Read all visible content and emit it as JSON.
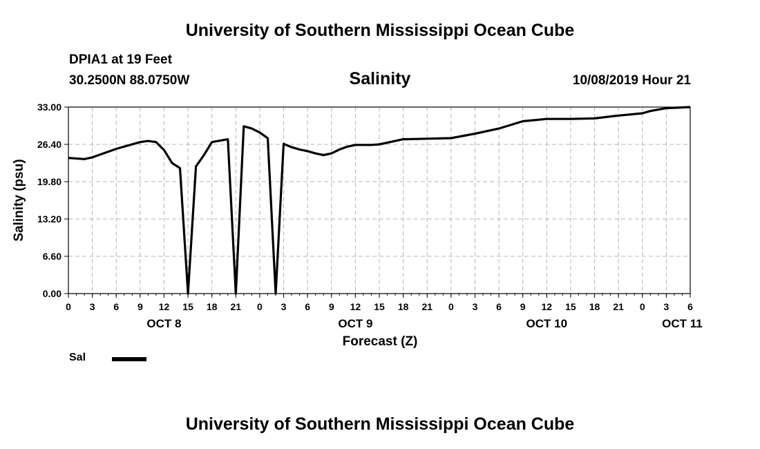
{
  "header": {
    "title_top": "University of Southern Mississippi Ocean Cube",
    "title_bottom": "University of Southern Mississippi Ocean Cube",
    "station": "DPIA1 at 19 Feet",
    "coords": "30.2500N 88.0750W",
    "datetime": "10/08/2019 Hour 21"
  },
  "chart_data": {
    "type": "line",
    "title": "Salinity",
    "xlabel": "Forecast (Z)",
    "ylabel": "Salinity (psu)",
    "ylim": [
      0,
      33
    ],
    "y_ticks": [
      "0.00",
      "6.60",
      "13.20",
      "19.80",
      "26.40",
      "33.00"
    ],
    "x_range_hours": [
      0,
      78
    ],
    "x_tick_labels": [
      "0",
      "3",
      "6",
      "9",
      "12",
      "15",
      "18",
      "21",
      "0",
      "3",
      "6",
      "9",
      "12",
      "15",
      "18",
      "21",
      "0",
      "3",
      "6",
      "9",
      "12",
      "15",
      "18",
      "21",
      "0",
      "3",
      "6"
    ],
    "day_labels": [
      {
        "label": "OCT 8",
        "hour": 12
      },
      {
        "label": "OCT 9",
        "hour": 36
      },
      {
        "label": "OCT 10",
        "hour": 60
      },
      {
        "label": "OCT 11",
        "hour": 77
      }
    ],
    "grid": true,
    "legend_position": "bottom-left",
    "series": [
      {
        "name": "Sal",
        "color": "#000000",
        "x": [
          0,
          2,
          3,
          6,
          9,
          10,
          11,
          12,
          13,
          14,
          15,
          16,
          17,
          18,
          20,
          21,
          22,
          23,
          24,
          25,
          26,
          27,
          28,
          29,
          30,
          31,
          32,
          33,
          34,
          35,
          36,
          38,
          39,
          42,
          45,
          48,
          51,
          54,
          57,
          60,
          63,
          66,
          69,
          72,
          73,
          75,
          78
        ],
        "values": [
          24.0,
          23.8,
          24.1,
          25.6,
          26.8,
          27.0,
          26.8,
          25.4,
          23.1,
          22.2,
          0.0,
          22.5,
          24.5,
          26.8,
          27.3,
          0.0,
          29.6,
          29.2,
          28.5,
          27.5,
          0.0,
          26.5,
          25.9,
          25.5,
          25.2,
          24.8,
          24.5,
          24.8,
          25.5,
          26.0,
          26.3,
          26.3,
          26.4,
          27.3,
          27.4,
          27.5,
          28.3,
          29.2,
          30.5,
          30.9,
          30.9,
          31.0,
          31.5,
          31.9,
          32.3,
          32.8,
          33.0
        ]
      }
    ]
  }
}
